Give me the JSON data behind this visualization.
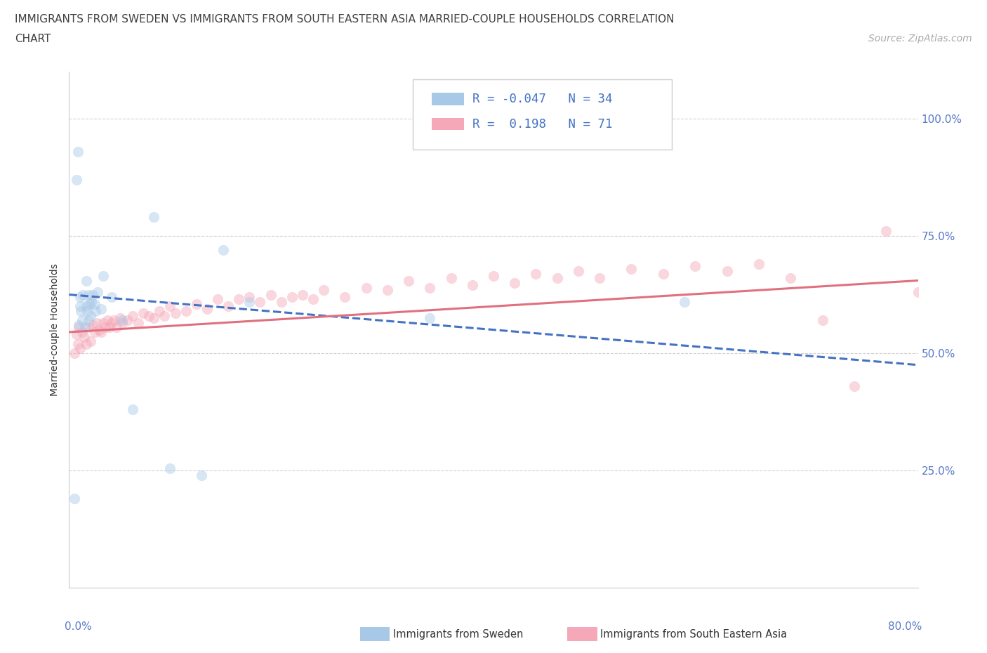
{
  "title_line1": "IMMIGRANTS FROM SWEDEN VS IMMIGRANTS FROM SOUTH EASTERN ASIA MARRIED-COUPLE HOUSEHOLDS CORRELATION",
  "title_line2": "CHART",
  "source": "Source: ZipAtlas.com",
  "ylabel": "Married-couple Households",
  "xlim": [
    0.0,
    0.8
  ],
  "ylim": [
    0.0,
    1.1
  ],
  "ytick_positions": [
    0.0,
    0.25,
    0.5,
    0.75,
    1.0
  ],
  "ytick_labels_right": [
    "",
    "25.0%",
    "50.0%",
    "75.0%",
    "100.0%"
  ],
  "xtick_positions": [
    0.0,
    0.1,
    0.2,
    0.3,
    0.4,
    0.5,
    0.6,
    0.7,
    0.8
  ],
  "xtick_labels": [
    "",
    "",
    "",
    "",
    "",
    "",
    "",
    "",
    ""
  ],
  "grid_color": "#cccccc",
  "background_color": "#ffffff",
  "sweden_color": "#a8c8e8",
  "sea_color": "#f4a8b8",
  "sweden_R": -0.047,
  "sweden_N": 34,
  "sea_R": 0.198,
  "sea_N": 71,
  "legend_label1": "Immigrants from Sweden",
  "legend_label2": "Immigrants from South Eastern Asia",
  "sweden_x": [
    0.005,
    0.007,
    0.008,
    0.009,
    0.01,
    0.01,
    0.011,
    0.012,
    0.013,
    0.015,
    0.016,
    0.016,
    0.017,
    0.018,
    0.018,
    0.019,
    0.02,
    0.021,
    0.022,
    0.024,
    0.025,
    0.027,
    0.03,
    0.032,
    0.04,
    0.05,
    0.06,
    0.08,
    0.095,
    0.125,
    0.145,
    0.17,
    0.34,
    0.58
  ],
  "sweden_y": [
    0.19,
    0.87,
    0.93,
    0.56,
    0.6,
    0.62,
    0.59,
    0.57,
    0.625,
    0.555,
    0.6,
    0.655,
    0.59,
    0.57,
    0.625,
    0.605,
    0.58,
    0.61,
    0.625,
    0.605,
    0.59,
    0.63,
    0.595,
    0.665,
    0.62,
    0.57,
    0.38,
    0.79,
    0.255,
    0.24,
    0.72,
    0.61,
    0.575,
    0.61
  ],
  "sea_x": [
    0.005,
    0.007,
    0.008,
    0.009,
    0.01,
    0.012,
    0.014,
    0.016,
    0.018,
    0.02,
    0.022,
    0.024,
    0.026,
    0.028,
    0.03,
    0.032,
    0.034,
    0.036,
    0.038,
    0.04,
    0.042,
    0.045,
    0.048,
    0.05,
    0.055,
    0.06,
    0.065,
    0.07,
    0.075,
    0.08,
    0.085,
    0.09,
    0.095,
    0.1,
    0.11,
    0.12,
    0.13,
    0.14,
    0.15,
    0.16,
    0.17,
    0.18,
    0.19,
    0.2,
    0.21,
    0.22,
    0.23,
    0.24,
    0.26,
    0.28,
    0.3,
    0.32,
    0.34,
    0.36,
    0.38,
    0.4,
    0.42,
    0.44,
    0.46,
    0.48,
    0.5,
    0.53,
    0.56,
    0.59,
    0.62,
    0.65,
    0.68,
    0.71,
    0.74,
    0.77,
    0.8
  ],
  "sea_y": [
    0.5,
    0.54,
    0.52,
    0.555,
    0.51,
    0.545,
    0.535,
    0.52,
    0.555,
    0.525,
    0.56,
    0.545,
    0.565,
    0.55,
    0.545,
    0.565,
    0.555,
    0.57,
    0.555,
    0.565,
    0.57,
    0.555,
    0.575,
    0.565,
    0.57,
    0.58,
    0.565,
    0.585,
    0.58,
    0.575,
    0.59,
    0.58,
    0.6,
    0.585,
    0.59,
    0.605,
    0.595,
    0.615,
    0.6,
    0.615,
    0.62,
    0.61,
    0.625,
    0.61,
    0.62,
    0.625,
    0.615,
    0.635,
    0.62,
    0.64,
    0.635,
    0.655,
    0.64,
    0.66,
    0.645,
    0.665,
    0.65,
    0.67,
    0.66,
    0.675,
    0.66,
    0.68,
    0.67,
    0.685,
    0.675,
    0.69,
    0.66,
    0.57,
    0.43,
    0.76,
    0.63
  ],
  "title_fontsize": 11,
  "axis_label_fontsize": 10,
  "tick_fontsize": 11,
  "source_fontsize": 10,
  "marker_size": 110,
  "marker_alpha": 0.45,
  "line_width": 2.2,
  "sweden_line_color": "#4472c4",
  "sea_line_color": "#e07080",
  "title_color": "#404040",
  "axis_color": "#5878c8"
}
